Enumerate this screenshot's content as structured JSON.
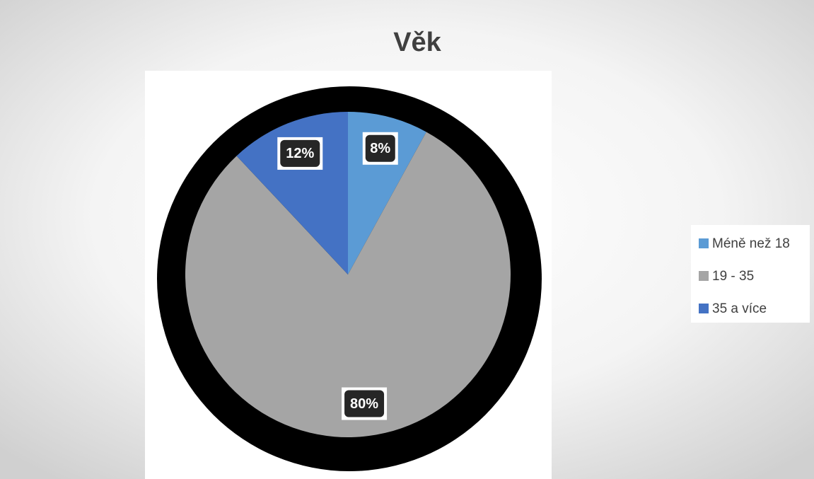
{
  "chart_data": {
    "type": "pie",
    "title": "Věk",
    "categories": [
      "Méně než 18",
      "19 - 35",
      "35 a více"
    ],
    "values": [
      8,
      80,
      12
    ],
    "value_labels": [
      "8%",
      "80%",
      "12%"
    ],
    "colors": [
      "#5b9bd5",
      "#a5a5a5",
      "#4472c4"
    ],
    "legend": "right"
  }
}
